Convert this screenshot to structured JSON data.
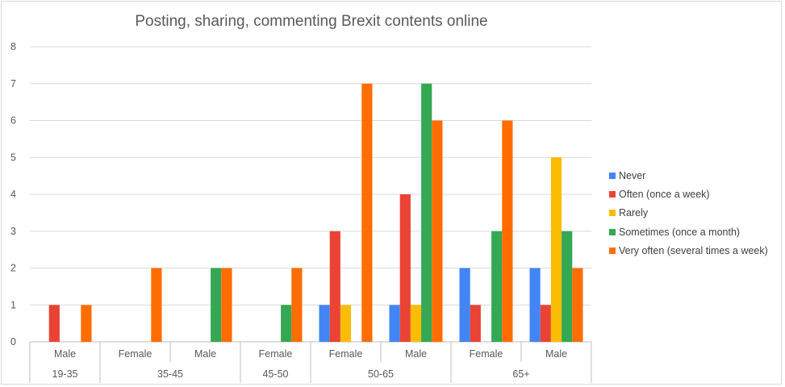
{
  "chart_data": {
    "type": "bar",
    "title": "Posting, sharing, commenting Brexit contents online",
    "xlabel": "",
    "ylabel": "",
    "ylim": [
      0,
      8
    ],
    "yticks": [
      "0",
      "1",
      "2",
      "3",
      "4",
      "5",
      "6",
      "7",
      "8"
    ],
    "grid": true,
    "legend_position": "right",
    "categories": [
      {
        "group": "19-35",
        "gender": "Male"
      },
      {
        "group": "35-45",
        "gender": "Female"
      },
      {
        "group": "35-45",
        "gender": "Male"
      },
      {
        "group": "45-50",
        "gender": "Female"
      },
      {
        "group": "50-65",
        "gender": "Female"
      },
      {
        "group": "50-65",
        "gender": "Male"
      },
      {
        "group": "65+",
        "gender": "Female"
      },
      {
        "group": "65+",
        "gender": "Male"
      }
    ],
    "groups": [
      {
        "label": "19-35",
        "span": 1
      },
      {
        "label": "35-45",
        "span": 2
      },
      {
        "label": "45-50",
        "span": 1
      },
      {
        "label": "50-65",
        "span": 2
      },
      {
        "label": "65+",
        "span": 2
      }
    ],
    "series": [
      {
        "name": "Never",
        "color": "#4285f4",
        "values": [
          0,
          0,
          0,
          0,
          1,
          1,
          2,
          2
        ]
      },
      {
        "name": "Often (once a week)",
        "color": "#ea4335",
        "values": [
          1,
          0,
          0,
          0,
          3,
          4,
          1,
          1
        ]
      },
      {
        "name": "Rarely",
        "color": "#fbbc04",
        "values": [
          0,
          0,
          0,
          0,
          1,
          1,
          0,
          5
        ]
      },
      {
        "name": "Sometimes (once a month)",
        "color": "#34a853",
        "values": [
          0,
          0,
          2,
          1,
          0,
          7,
          3,
          3
        ]
      },
      {
        "name": "Very often (several times a week)",
        "color": "#ff6d01",
        "values": [
          1,
          2,
          2,
          2,
          7,
          6,
          6,
          2
        ]
      }
    ]
  }
}
